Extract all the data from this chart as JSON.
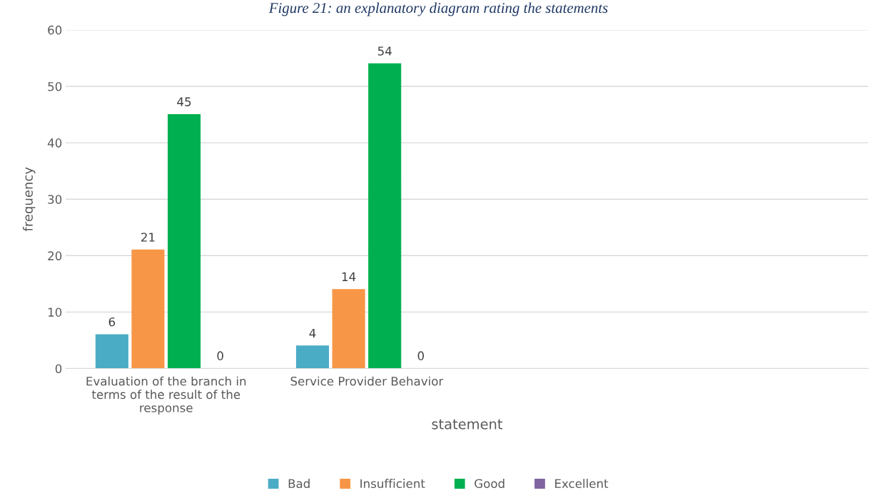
{
  "chart_data": {
    "type": "bar",
    "title": "Figure 21: an explanatory diagram rating the statements",
    "xlabel": "statement",
    "ylabel": "frequency",
    "categories": [
      "Evaluation of the branch in terms of the result of the response",
      "Service Provider Behavior",
      null,
      null
    ],
    "series": [
      {
        "name": "Bad",
        "color": "#4bacc6",
        "values": [
          6,
          4,
          null,
          null
        ]
      },
      {
        "name": "Insufficient",
        "color": "#f79646",
        "values": [
          21,
          14,
          null,
          null
        ]
      },
      {
        "name": "Good",
        "color": "#00b050",
        "values": [
          45,
          54,
          null,
          null
        ]
      },
      {
        "name": "Excellent",
        "color": "#8064a2",
        "values": [
          0,
          0,
          null,
          null
        ]
      }
    ],
    "ylim": [
      0,
      60
    ],
    "yticks": [
      0,
      10,
      20,
      30,
      40,
      50,
      60
    ],
    "grid": "y",
    "legend": "bottom",
    "data_labels": true
  }
}
